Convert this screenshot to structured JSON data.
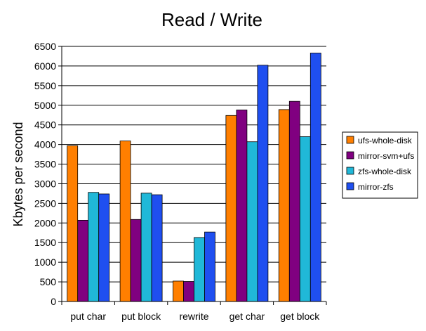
{
  "chart_data": {
    "type": "bar",
    "title": "Read / Write",
    "xlabel": "",
    "ylabel": "Kbytes per second",
    "ylim": [
      0,
      6500
    ],
    "ytick_step": 500,
    "grid": true,
    "legend_position": "right",
    "categories": [
      "put char",
      "put block",
      "rewrite",
      "get char",
      "get block"
    ],
    "series": [
      {
        "name": "ufs-whole-disk",
        "color": "#ff7f00",
        "values": [
          3970,
          4090,
          520,
          4740,
          4890
        ]
      },
      {
        "name": "mirror-svm+ufs",
        "color": "#800080",
        "values": [
          2070,
          2090,
          510,
          4880,
          5100
        ]
      },
      {
        "name": "zfs-whole-disk",
        "color": "#20b8d8",
        "values": [
          2780,
          2760,
          1630,
          4070,
          4200
        ]
      },
      {
        "name": "mirror-zfs",
        "color": "#1f4ff0",
        "values": [
          2740,
          2720,
          1770,
          6020,
          6330
        ]
      }
    ]
  }
}
